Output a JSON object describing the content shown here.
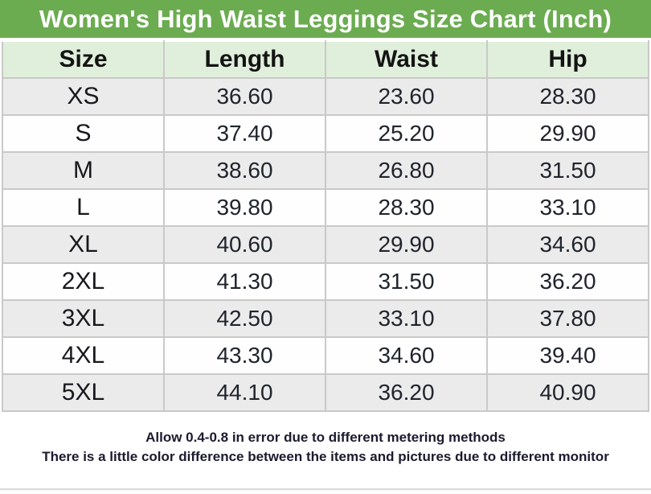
{
  "header": {
    "title": "Women's High Waist Leggings Size Chart (Inch)"
  },
  "chart_data": {
    "type": "table",
    "title": "Women's High Waist Leggings Size Chart (Inch)",
    "units": "Inch",
    "columns": [
      "Size",
      "Length",
      "Waist",
      "Hip"
    ],
    "rows": [
      [
        "XS",
        "36.60",
        "23.60",
        "28.30"
      ],
      [
        "S",
        "37.40",
        "25.20",
        "29.90"
      ],
      [
        "M",
        "38.60",
        "26.80",
        "31.50"
      ],
      [
        "L",
        "39.80",
        "28.30",
        "33.10"
      ],
      [
        "XL",
        "40.60",
        "29.90",
        "34.60"
      ],
      [
        "2XL",
        "41.30",
        "31.50",
        "36.20"
      ],
      [
        "3XL",
        "42.50",
        "33.10",
        "37.80"
      ],
      [
        "4XL",
        "43.30",
        "34.60",
        "39.40"
      ],
      [
        "5XL",
        "44.10",
        "36.20",
        "40.90"
      ]
    ],
    "layout": {
      "alternating_rows": true,
      "grid": true,
      "header_position": "top"
    }
  },
  "footer": {
    "line1": "Allow 0.4-0.8 in error due to different metering methods",
    "line2": "There is a little color difference between the items and pictures due to different monitor"
  },
  "colors": {
    "title_bar_green": "#6bac50",
    "header_row_green": "#e0efdb",
    "alt_row_grey": "#ebebeb",
    "row_white": "#fefefe",
    "border_grey": "#c9c9c9",
    "title_text": "#ffffff",
    "cell_text": "#20242c",
    "footer_text": "#1b1b2e"
  }
}
